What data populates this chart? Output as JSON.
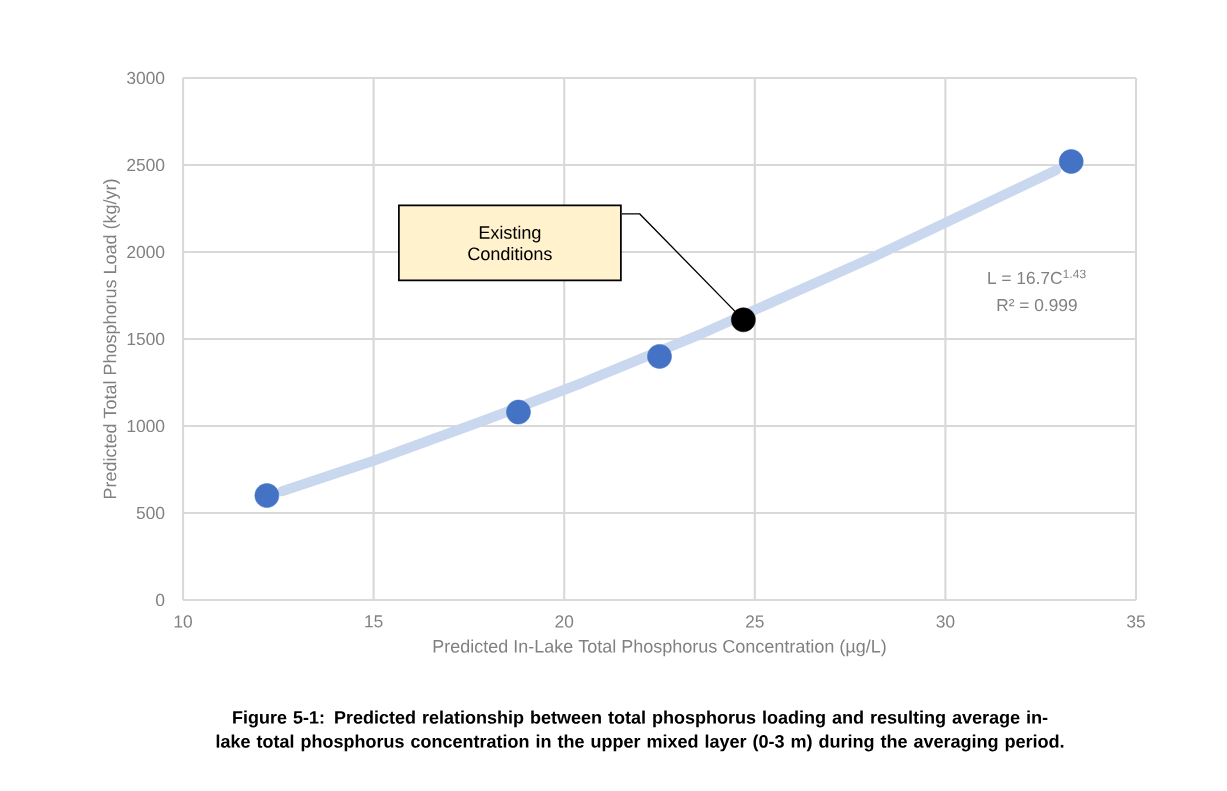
{
  "chart_data": {
    "type": "scatter",
    "xlabel": "Predicted In-Lake Total Phosphorus Concentration (µg/L)",
    "ylabel": "Predicted Total Phosphorus Load (kg/yr)",
    "xlim": [
      10,
      35
    ],
    "xticks": [
      10,
      15,
      20,
      25,
      30,
      35
    ],
    "ylim": [
      0,
      3000
    ],
    "yticks": [
      0,
      500,
      1000,
      1500,
      2000,
      2500,
      3000
    ],
    "grid": true,
    "marker": "circle",
    "series": [
      {
        "type": "scatter",
        "color": "#4472c4",
        "colors": [
          "#4472c4",
          "#4472c4",
          "#4472c4",
          "#000000",
          "#4472c4"
        ],
        "x": [
          12.2,
          18.8,
          22.5,
          24.7,
          33.3
        ],
        "values": [
          600,
          1080,
          1400,
          1610,
          2520
        ]
      },
      {
        "type": "line",
        "color": "#c9d7ef",
        "marker": "none",
        "x": [
          12.6,
          15,
          18,
          20.5,
          23.6,
          28,
          32.9
        ],
        "values": [
          625,
          800,
          1040,
          1250,
          1530,
          1960,
          2470
        ]
      }
    ],
    "annotations": [
      "Existing Conditions",
      "L = 16.7C$^{1.43}$",
      "R² = 0.999",
      "Figure 5-1: Predicted relationship between total phosphorus loading and resulting average in-lake total phosphorus concentration in the upper mixed layer (0-3 m) during the averaging period."
    ]
  }
}
